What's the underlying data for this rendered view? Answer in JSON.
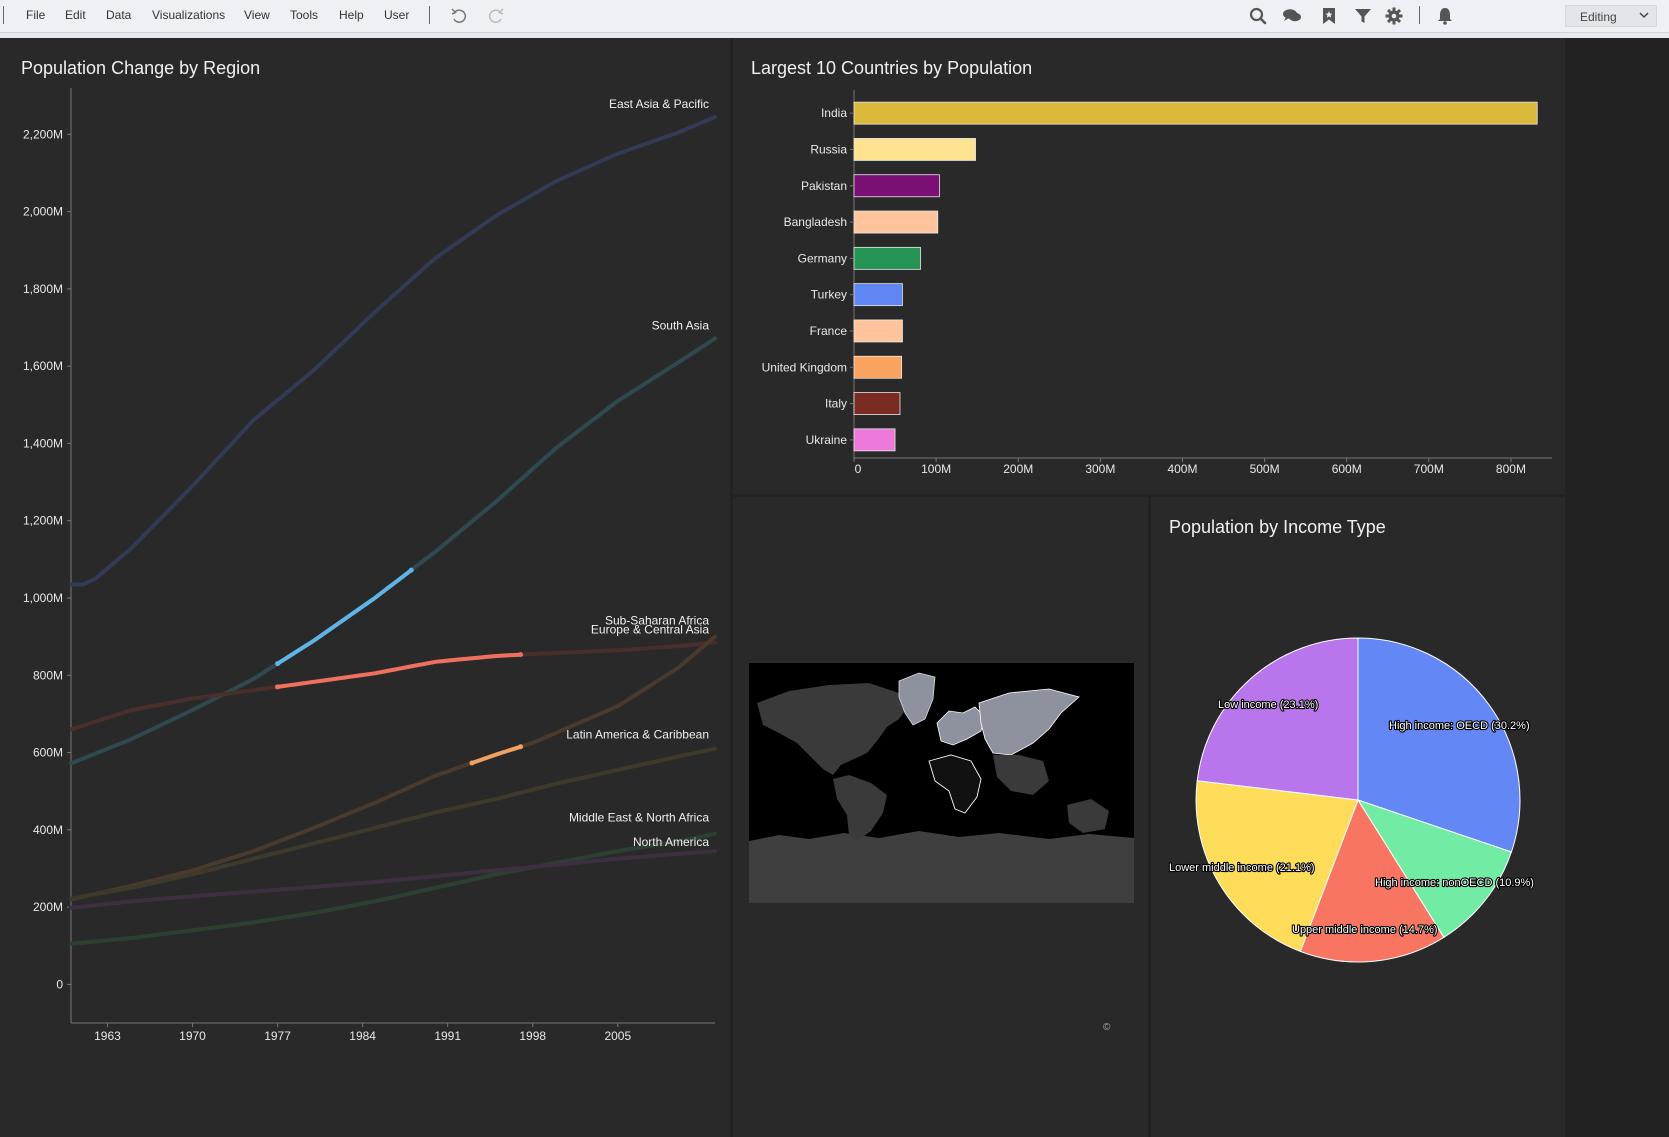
{
  "menu": {
    "items": [
      "File",
      "Edit",
      "Data",
      "Visualizations",
      "View",
      "Tools",
      "Help",
      "User"
    ],
    "mode": "Editing"
  },
  "toolbar_icons": [
    "undo-icon",
    "redo-icon",
    "search-icon",
    "comments-icon",
    "bookmark-icon",
    "filter-icon",
    "gear-icon",
    "bell-icon"
  ],
  "panels": {
    "line": {
      "title": "Population Change by Region"
    },
    "bar": {
      "title": "Largest 10 Countries by Population"
    },
    "map": {
      "title": "",
      "attribution": "©"
    },
    "pie": {
      "title": "Population by Income Type"
    }
  },
  "chart_data": [
    {
      "type": "line",
      "title": "Population Change by Region",
      "xlabel": "",
      "ylabel": "",
      "xlim": [
        1960,
        2013
      ],
      "ylim": [
        -100,
        2320
      ],
      "x_ticks": [
        1963,
        1970,
        1977,
        1984,
        1991,
        1998,
        2005
      ],
      "y_ticks": [
        0,
        200,
        400,
        600,
        800,
        1000,
        1200,
        1400,
        1600,
        1800,
        2000,
        2200
      ],
      "y_tick_labels": [
        "0",
        "200M",
        "400M",
        "600M",
        "800M",
        "1,000M",
        "1,200M",
        "1,400M",
        "1,600M",
        "1,800M",
        "2,000M",
        "2,200M"
      ],
      "series": [
        {
          "name": "East Asia & Pacific",
          "color": "#333a55",
          "x": [
            1960,
            1961,
            1962,
            1965,
            1970,
            1975,
            1980,
            1985,
            1990,
            1995,
            2000,
            2005,
            2010,
            2013
          ],
          "y": [
            1035,
            1035,
            1050,
            1130,
            1290,
            1460,
            1590,
            1740,
            1880,
            1990,
            2080,
            2150,
            2205,
            2245
          ],
          "highlight": null
        },
        {
          "name": "South Asia",
          "color": "#2f4a4f",
          "x": [
            1960,
            1965,
            1970,
            1975,
            1980,
            1985,
            1990,
            1995,
            2000,
            2005,
            2010,
            2013
          ],
          "y": [
            572,
            635,
            710,
            790,
            890,
            1000,
            1120,
            1250,
            1390,
            1510,
            1610,
            1672
          ],
          "highlight": {
            "x0": 1977,
            "x1": 1988,
            "color": "#5fb3e6"
          }
        },
        {
          "name": "Sub-Saharan Africa",
          "color": "#4a2e2c",
          "x": [
            1960,
            1965,
            1970,
            1977,
            1980,
            1985,
            1990,
            1995,
            1998,
            2005,
            2010,
            2013
          ],
          "y": [
            660,
            710,
            740,
            770,
            783,
            805,
            835,
            850,
            855,
            865,
            875,
            885
          ],
          "highlight": {
            "x0": 1977,
            "x1": 1997,
            "color": "#f07060"
          }
        },
        {
          "name": "Europe & Central Asia",
          "color": "#4a3a2d",
          "x": [
            1960,
            1965,
            1970,
            1975,
            1980,
            1985,
            1990,
            1995,
            1998,
            2005,
            2010,
            2013
          ],
          "y": [
            220,
            255,
            295,
            345,
            405,
            470,
            540,
            595,
            625,
            720,
            820,
            900
          ],
          "highlight": {
            "x0": 1993,
            "x1": 1997,
            "color": "#f0a060"
          }
        },
        {
          "name": "Latin America & Caribbean",
          "color": "#3d3a2b",
          "x": [
            1960,
            1965,
            1970,
            1975,
            1980,
            1985,
            1990,
            1995,
            2000,
            2005,
            2010,
            2013
          ],
          "y": [
            222,
            250,
            285,
            325,
            365,
            405,
            445,
            480,
            520,
            555,
            590,
            610
          ],
          "highlight": null
        },
        {
          "name": "Middle East & North Africa",
          "color": "#2c4032",
          "x": [
            1960,
            1965,
            1970,
            1975,
            1980,
            1985,
            1990,
            1995,
            2000,
            2005,
            2010,
            2013
          ],
          "y": [
            105,
            120,
            140,
            160,
            185,
            215,
            250,
            285,
            315,
            345,
            370,
            390
          ],
          "highlight": null
        },
        {
          "name": "North America",
          "color": "#3d2f40",
          "x": [
            1960,
            1965,
            1970,
            1975,
            1980,
            1985,
            1990,
            1995,
            2000,
            2005,
            2010,
            2013
          ],
          "y": [
            198,
            215,
            228,
            240,
            252,
            265,
            280,
            295,
            310,
            325,
            338,
            345
          ],
          "highlight": null
        }
      ]
    },
    {
      "type": "bar",
      "orientation": "horizontal",
      "title": "Largest 10 Countries by Population",
      "categories": [
        "India",
        "Russia",
        "Pakistan",
        "Bangladesh",
        "Germany",
        "Turkey",
        "France",
        "United Kingdom",
        "Italy",
        "Ukraine"
      ],
      "values": [
        832,
        148,
        104,
        102,
        81,
        59,
        59,
        58,
        56,
        50
      ],
      "colors": [
        "#dbb93a",
        "#fde38f",
        "#7a0f74",
        "#ffc49b",
        "#259454",
        "#5f86f2",
        "#ffc49b",
        "#f9a35f",
        "#7a2b22",
        "#ee79dc"
      ],
      "xlim": [
        0,
        850
      ],
      "x_ticks": [
        0,
        100,
        200,
        300,
        400,
        500,
        600,
        700,
        800
      ],
      "x_tick_labels": [
        "0",
        "100M",
        "200M",
        "300M",
        "400M",
        "500M",
        "600M",
        "700M",
        "800M"
      ]
    },
    {
      "type": "pie",
      "title": "Population by Income Type",
      "labels": [
        "High income: OECD (30.2%)",
        "High income: nonOECD (10.9%)",
        "Upper middle income (14.7%)",
        "Lower middle income (21.1%)",
        "Low income (23.1%)"
      ],
      "values": [
        30.2,
        10.9,
        14.7,
        21.1,
        23.1
      ],
      "colors": [
        "#6387f5",
        "#72eba5",
        "#f87562",
        "#fddc5a",
        "#b875ec"
      ]
    }
  ]
}
